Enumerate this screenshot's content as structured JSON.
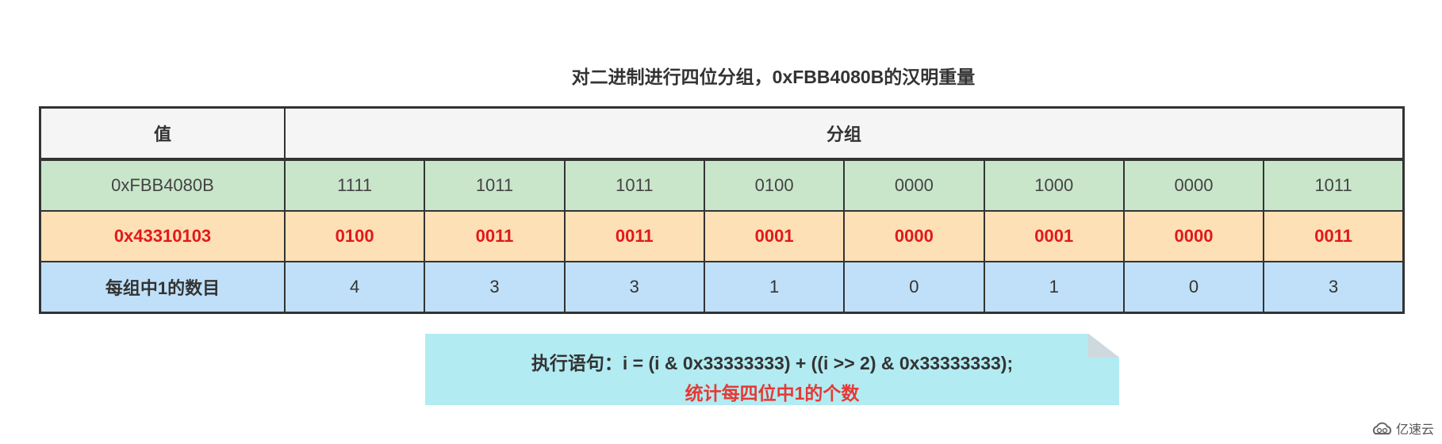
{
  "title": "对二进制进行四位分组，0xFBB4080B的汉明重量",
  "table": {
    "headers": {
      "value": "值",
      "groups": "分组"
    },
    "rows": [
      {
        "label": "0xFBB4080B",
        "cells": [
          "1111",
          "1011",
          "1011",
          "0100",
          "0000",
          "1000",
          "0000",
          "1011"
        ]
      },
      {
        "label": "0x43310103",
        "cells": [
          "0100",
          "0011",
          "0011",
          "0001",
          "0000",
          "0001",
          "0000",
          "0011"
        ]
      },
      {
        "label": "每组中1的数目",
        "cells": [
          "4",
          "3",
          "3",
          "1",
          "0",
          "1",
          "0",
          "3"
        ]
      }
    ]
  },
  "note": {
    "line1": "执行语句：i = (i & 0x33333333) + ((i >> 2) & 0x33333333);",
    "line2": "统计每四位中1的个数"
  },
  "watermark": {
    "text": "亿速云",
    "icon": "cloud-logo-icon"
  },
  "colors": {
    "header": "#f5f5f5",
    "row1": "#c9e6cb",
    "row2": "#fde0b5",
    "row3": "#bfe0f8",
    "note": "#b2ebf2",
    "highlight": "#e0191b"
  }
}
